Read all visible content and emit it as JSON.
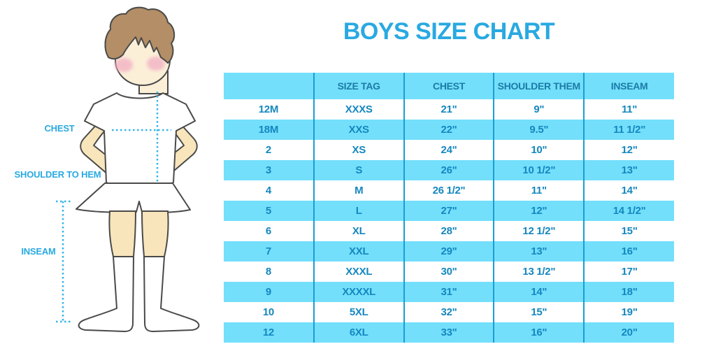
{
  "title": "BOYS SIZE CHART",
  "figure": {
    "labels": {
      "chest": "CHEST",
      "shoulder_to_hem": "SHOULDER TO HEM",
      "inseam": "INSEAM"
    }
  },
  "chart_data": {
    "type": "table",
    "title": "BOYS SIZE CHART",
    "columns": [
      "",
      "SIZE TAG",
      "CHEST",
      "SHOULDER THEM",
      "INSEAM"
    ],
    "rows": [
      [
        "12M",
        "XXXS",
        "21\"",
        "9\"",
        "11\""
      ],
      [
        "18M",
        "XXS",
        "22\"",
        "9.5\"",
        "11 1/2\""
      ],
      [
        "2",
        "XS",
        "24\"",
        "10\"",
        "12\""
      ],
      [
        "3",
        "S",
        "26\"",
        "10 1/2\"",
        "13\""
      ],
      [
        "4",
        "M",
        "26 1/2\"",
        "11\"",
        "14\""
      ],
      [
        "5",
        "L",
        "27\"",
        "12\"",
        "14 1/2\""
      ],
      [
        "6",
        "XL",
        "28\"",
        "12 1/2\"",
        "15\""
      ],
      [
        "7",
        "XXL",
        "29\"",
        "13\"",
        "16\""
      ],
      [
        "8",
        "XXXL",
        "30\"",
        "13 1/2\"",
        "17\""
      ],
      [
        "9",
        "XXXXL",
        "31\"",
        "14\"",
        "18\""
      ],
      [
        "10",
        "5XL",
        "32\"",
        "15\"",
        "19\""
      ],
      [
        "12",
        "6XL",
        "33\"",
        "16\"",
        "20\""
      ]
    ]
  },
  "colors": {
    "accent_blue": "#29A9E1",
    "table_text": "#1487BF",
    "header_text": "#1C7BA6",
    "row_highlight": "#73DFFB",
    "divider_line": "#1B9CD4",
    "dotted_line": "#35B5EA",
    "skin_face": "#FBEFD8",
    "skin_limbs": "#F8E5BB",
    "hair_brown": "#B38E66",
    "outline": "#4A4A49",
    "cheek_pink": "#F2AEC3"
  }
}
